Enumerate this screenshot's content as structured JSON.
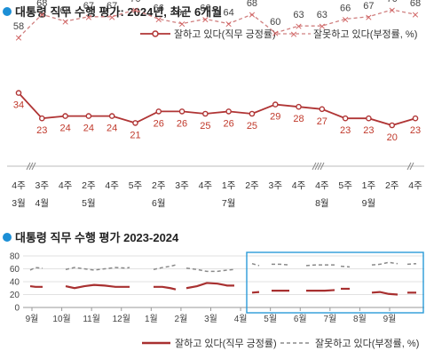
{
  "chart_data": [
    {
      "type": "line",
      "title": "대통령 직무 수행 평가: 2024년, 최근 6개월",
      "week_labels": [
        "4주",
        "3주",
        "4주",
        "2주",
        "4주",
        "5주",
        "2주",
        "3주",
        "4주",
        "1주",
        "2주",
        "3주",
        "4주",
        "4주",
        "5주",
        "1주",
        "2주",
        "4주"
      ],
      "month_labels": [
        {
          "label": "3월",
          "index": 0
        },
        {
          "label": "4월",
          "index": 1
        },
        {
          "label": "5월",
          "index": 3
        },
        {
          "label": "6월",
          "index": 6
        },
        {
          "label": "7월",
          "index": 9
        },
        {
          "label": "8월",
          "index": 13
        },
        {
          "label": "9월",
          "index": 15
        }
      ],
      "series": [
        {
          "name": "잘하고 있다(직무 긍정률)",
          "color": "#b03535",
          "values": [
            34,
            23,
            24,
            24,
            24,
            21,
            26,
            26,
            25,
            26,
            25,
            29,
            28,
            27,
            23,
            23,
            20,
            23
          ]
        },
        {
          "name": "잘못하고 있다(부정률, %)",
          "color": "#b03535",
          "values": [
            58,
            68,
            65,
            67,
            67,
            70,
            66,
            64,
            66,
            64,
            68,
            60,
            63,
            63,
            66,
            67,
            70,
            68
          ]
        }
      ]
    },
    {
      "type": "line",
      "title": "대통령 직무 수행 평가 2023-2024",
      "ylim": [
        0,
        80
      ],
      "yticks": [
        "0",
        "20",
        "40",
        "60",
        "80"
      ],
      "xticks": [
        "9월",
        "10월",
        "11월",
        "12월",
        "1월",
        "2월",
        "3월",
        "4월",
        "5월",
        "6월",
        "7월",
        "8월",
        "9월"
      ],
      "series": [
        {
          "name": "잘하고 있다(직무 긍정률)",
          "color": "#a83030"
        },
        {
          "name": "잘못하고 있다(부정률, %)",
          "color": "#8a8a8a"
        }
      ]
    }
  ]
}
